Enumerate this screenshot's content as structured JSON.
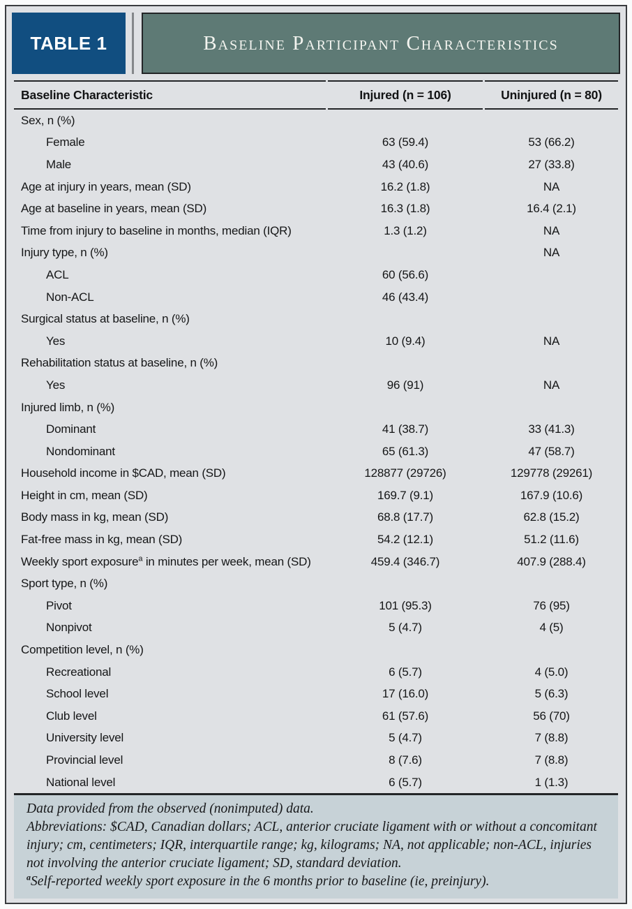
{
  "header": {
    "table_label": "TABLE 1",
    "title": "Baseline Participant Characteristics"
  },
  "table": {
    "columns": [
      "Baseline Characteristic",
      "Injured (n = 106)",
      "Uninjured (n = 80)"
    ],
    "rows": [
      {
        "label": "Sex, n (%)",
        "injured": "",
        "uninjured": "",
        "indent": false
      },
      {
        "label": "Female",
        "injured": "63 (59.4)",
        "uninjured": "53 (66.2)",
        "indent": true
      },
      {
        "label": "Male",
        "injured": "43 (40.6)",
        "uninjured": "27 (33.8)",
        "indent": true
      },
      {
        "label": "Age at injury in years, mean (SD)",
        "injured": "16.2 (1.8)",
        "uninjured": "NA",
        "indent": false
      },
      {
        "label": "Age at baseline in years, mean (SD)",
        "injured": "16.3 (1.8)",
        "uninjured": "16.4 (2.1)",
        "indent": false
      },
      {
        "label": "Time from injury to baseline in months, median (IQR)",
        "injured": "1.3 (1.2)",
        "uninjured": "NA",
        "indent": false
      },
      {
        "label": "Injury type, n (%)",
        "injured": "",
        "uninjured": "NA",
        "indent": false
      },
      {
        "label": "ACL",
        "injured": "60 (56.6)",
        "uninjured": "",
        "indent": true
      },
      {
        "label": "Non-ACL",
        "injured": "46 (43.4)",
        "uninjured": "",
        "indent": true
      },
      {
        "label": "Surgical status at baseline, n (%)",
        "injured": "",
        "uninjured": "",
        "indent": false
      },
      {
        "label": "Yes",
        "injured": "10 (9.4)",
        "uninjured": "NA",
        "indent": true
      },
      {
        "label": "Rehabilitation status at baseline, n (%)",
        "injured": "",
        "uninjured": "",
        "indent": false
      },
      {
        "label": "Yes",
        "injured": "96 (91)",
        "uninjured": "NA",
        "indent": true
      },
      {
        "label": "Injured limb, n (%)",
        "injured": "",
        "uninjured": "",
        "indent": false
      },
      {
        "label": "Dominant",
        "injured": "41 (38.7)",
        "uninjured": "33 (41.3)",
        "indent": true
      },
      {
        "label": "Nondominant",
        "injured": "65 (61.3)",
        "uninjured": "47 (58.7)",
        "indent": true
      },
      {
        "label": "Household income in $CAD, mean (SD)",
        "injured": "128877 (29726)",
        "uninjured": "129778 (29261)",
        "indent": false
      },
      {
        "label": "Height in cm, mean (SD)",
        "injured": "169.7 (9.1)",
        "uninjured": "167.9 (10.6)",
        "indent": false
      },
      {
        "label": "Body mass in kg, mean (SD)",
        "injured": "68.8 (17.7)",
        "uninjured": "62.8 (15.2)",
        "indent": false
      },
      {
        "label": "Fat-free mass in kg, mean (SD)",
        "injured": "54.2 (12.1)",
        "uninjured": "51.2 (11.6)",
        "indent": false
      },
      {
        "label": "Weekly sport exposure",
        "label_sup": "a",
        "label_rest": " in minutes per week, mean (SD)",
        "injured": "459.4 (346.7)",
        "uninjured": "407.9 (288.4)",
        "indent": false
      },
      {
        "label": "Sport type, n (%)",
        "injured": "",
        "uninjured": "",
        "indent": false
      },
      {
        "label": "Pivot",
        "injured": "101 (95.3)",
        "uninjured": "76 (95)",
        "indent": true
      },
      {
        "label": "Nonpivot",
        "injured": "5 (4.7)",
        "uninjured": "4 (5)",
        "indent": true
      },
      {
        "label": "Competition level, n (%)",
        "injured": "",
        "uninjured": "",
        "indent": false
      },
      {
        "label": "Recreational",
        "injured": "6 (5.7)",
        "uninjured": "4 (5.0)",
        "indent": true
      },
      {
        "label": "School level",
        "injured": "17 (16.0)",
        "uninjured": "5 (6.3)",
        "indent": true
      },
      {
        "label": "Club level",
        "injured": "61 (57.6)",
        "uninjured": "56 (70)",
        "indent": true
      },
      {
        "label": "University level",
        "injured": "5 (4.7)",
        "uninjured": "7 (8.8)",
        "indent": true
      },
      {
        "label": "Provincial level",
        "injured": "8 (7.6)",
        "uninjured": "7 (8.8)",
        "indent": true
      },
      {
        "label": "National level",
        "injured": "6 (5.7)",
        "uninjured": "1 (1.3)",
        "indent": true
      }
    ]
  },
  "footnote": {
    "line1": "Data provided from the observed (nonimputed) data.",
    "abbreviations": "Abbreviations: $CAD, Canadian dollars; ACL, anterior cruciate ligament with or without a concomitant injury; cm, centimeters; IQR, interquartile range; kg, kilograms; NA, not applicable; non-ACL, injuries not involving the anterior cruciate ligament; SD, standard deviation.",
    "exposure_note": {
      "sup": "a",
      "text": "Self-reported weekly sport exposure in the 6 months prior to baseline (ie, preinjury)."
    }
  },
  "colors": {
    "table_label_bg": "#114e80",
    "title_bg": "#5e7a75",
    "body_bg": "#dfe1e4",
    "footnote_bg": "#c7d2d7",
    "rule": "#232527"
  }
}
